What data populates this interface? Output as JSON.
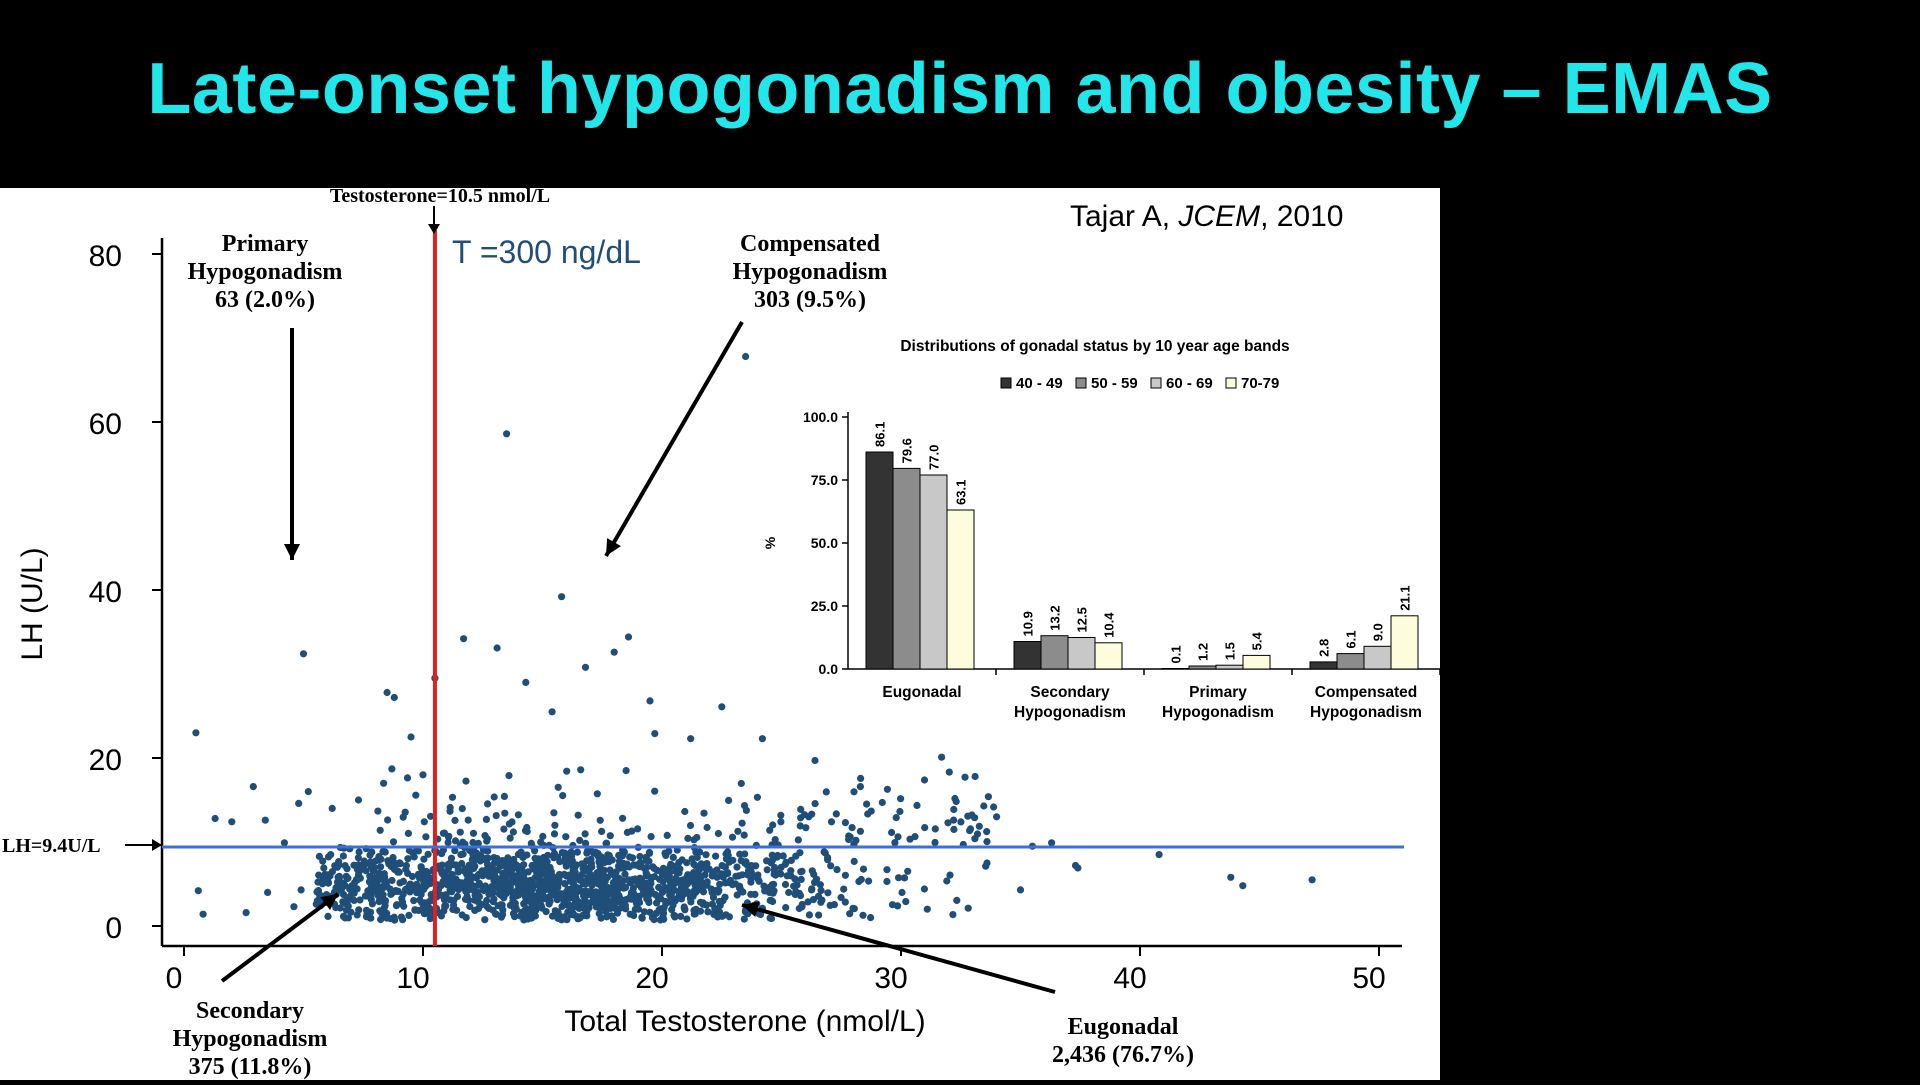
{
  "slide": {
    "title": "Late-onset hypogonadism and obesity – EMAS",
    "citation_author": "Tajar A, ",
    "citation_journal": "JCEM",
    "citation_year": ", 2010",
    "colors": {
      "title": "#22e6ea",
      "background": "#000000",
      "panel": "#ffffff"
    }
  },
  "chart_data": [
    {
      "type": "scatter",
      "xlabel": "Total Testosterone (nmol/L)",
      "ylabel": "LH (U/L)",
      "xlim": [
        0,
        52
      ],
      "ylim": [
        0,
        84
      ],
      "xticks": [
        "0",
        "10",
        "20",
        "30",
        "40",
        "50"
      ],
      "yticks": [
        "0",
        "20",
        "40",
        "60",
        "80"
      ],
      "point_color": "#1f4e79",
      "vline": {
        "x": 10.5,
        "label": "Testosterone=10.5 nmol/L",
        "annotation": "T =300 ng/dL",
        "color": "#e02020"
      },
      "hline": {
        "y": 9.4,
        "label": "LH=9.4U/L",
        "color": "#3a6fe0"
      },
      "regions": [
        {
          "name": "Primary",
          "line1": "Primary",
          "line2": "Hypogonadism",
          "line3": "63 (2.0%)"
        },
        {
          "name": "Compensated",
          "line1": "Compensated",
          "line2": "Hypogonadism",
          "line3": "303 (9.5%)"
        },
        {
          "name": "Secondary",
          "line1": "Secondary",
          "line2": "Hypogonadism",
          "line3": "375 (11.8%)"
        },
        {
          "name": "Eugonadal",
          "line1": "Eugonadal",
          "line2": "2,436 (76.7%)"
        }
      ],
      "outliers": [
        [
          23.5,
          67.8
        ],
        [
          13.5,
          58.6
        ],
        [
          15.8,
          39.2
        ],
        [
          5.0,
          32.4
        ],
        [
          11.7,
          34.2
        ],
        [
          18.6,
          34.4
        ],
        [
          13.1,
          33.1
        ],
        [
          18.0,
          32.6
        ],
        [
          16.8,
          30.8
        ],
        [
          10.5,
          29.5
        ],
        [
          8.5,
          27.8
        ],
        [
          8.8,
          27.2
        ],
        [
          14.3,
          29.0
        ],
        [
          19.5,
          26.8
        ],
        [
          15.4,
          25.5
        ],
        [
          22.5,
          26.1
        ],
        [
          9.5,
          22.5
        ],
        [
          19.7,
          22.9
        ],
        [
          24.2,
          22.3
        ],
        [
          21.2,
          22.3
        ],
        [
          0.5,
          23.0
        ],
        [
          31.7,
          20.1
        ],
        [
          26.4,
          19.7
        ],
        [
          33.1,
          17.8
        ],
        [
          2.9,
          16.6
        ],
        [
          5.2,
          16.0
        ],
        [
          8.7,
          18.7
        ],
        [
          10.0,
          18.0
        ],
        [
          13.6,
          17.9
        ],
        [
          16.6,
          18.6
        ],
        [
          18.5,
          18.5
        ],
        [
          1.3,
          12.8
        ],
        [
          2.0,
          12.4
        ],
        [
          3.4,
          12.6
        ],
        [
          4.8,
          14.6
        ],
        [
          6.2,
          14.0
        ],
        [
          7.3,
          15.0
        ],
        [
          28.3,
          16.6
        ],
        [
          29.8,
          12.9
        ],
        [
          35.5,
          9.5
        ],
        [
          36.3,
          9.9
        ],
        [
          37.4,
          6.9
        ],
        [
          37.3,
          7.2
        ],
        [
          40.8,
          8.5
        ],
        [
          43.8,
          5.8
        ],
        [
          44.3,
          4.8
        ],
        [
          47.2,
          5.5
        ],
        [
          34.0,
          13.0
        ],
        [
          0.6,
          4.2
        ],
        [
          0.8,
          1.4
        ],
        [
          2.6,
          1.6
        ],
        [
          3.5,
          4.0
        ],
        [
          4.6,
          2.3
        ],
        [
          4.2,
          9.9
        ],
        [
          4.9,
          4.3
        ],
        [
          30.2,
          2.9
        ],
        [
          31.1,
          2.0
        ],
        [
          35.0,
          4.3
        ],
        [
          33.6,
          7.5
        ]
      ]
    },
    {
      "type": "bar",
      "title": "Distributions of gonadal status by 10 year age bands",
      "ylabel": "%",
      "ylim": [
        0,
        100
      ],
      "yticks": [
        "0.0",
        "25.0",
        "50.0",
        "75.0",
        "100.0"
      ],
      "categories": [
        "Eugonadal",
        "Secondary|Hypogonadism",
        "Primary|Hypogonadism",
        "Compensated|Hypogonadism"
      ],
      "series": [
        {
          "name": "40 - 49",
          "color": "#333333",
          "values": [
            86.1,
            10.9,
            0.1,
            2.8
          ]
        },
        {
          "name": "50 - 59",
          "color": "#8c8c8c",
          "values": [
            79.6,
            13.2,
            1.2,
            6.1
          ]
        },
        {
          "name": "60 - 69",
          "color": "#c8c8c8",
          "values": [
            77.0,
            12.5,
            1.5,
            9.0
          ]
        },
        {
          "name": "70-79",
          "color": "#fdfcdc",
          "values": [
            63.1,
            10.4,
            5.4,
            21.1
          ]
        }
      ],
      "value_labels": [
        [
          "86.1",
          "10.9",
          "0.1",
          "2.8"
        ],
        [
          "79.6",
          "13.2",
          "1.2",
          "6.1"
        ],
        [
          "77.0",
          "12.5",
          "1.5",
          "9.0"
        ],
        [
          "63.1",
          "10.4",
          "5.4",
          "21.1"
        ]
      ],
      "legend": "top"
    }
  ]
}
